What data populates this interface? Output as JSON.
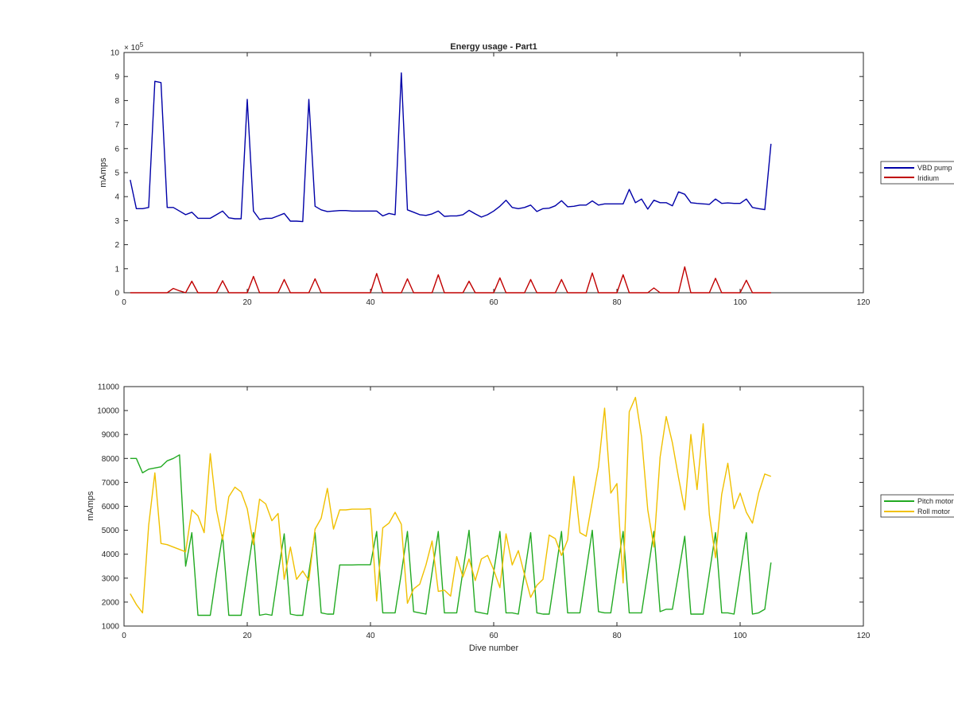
{
  "figure": {
    "title": "Energy usage - Part1"
  },
  "colors": {
    "vbd": "#0000a8",
    "iridium": "#c00000",
    "pitch": "#22aa22",
    "roll": "#f0c000",
    "axes": "#262626"
  },
  "chart_data": [
    {
      "type": "line",
      "title": "Energy usage - Part1",
      "xlabel": "",
      "ylabel": "mAmps",
      "xlim": [
        0,
        120
      ],
      "ylim": [
        0,
        1000000
      ],
      "exponent_label": "× 10",
      "exponent_power": "5",
      "xticks": [
        0,
        20,
        40,
        60,
        80,
        100,
        120
      ],
      "xtick_labels": [
        "0",
        "20",
        "40",
        "60",
        "80",
        "100",
        "120"
      ],
      "yticks": [
        0,
        100000,
        200000,
        300000,
        400000,
        500000,
        600000,
        700000,
        800000,
        900000,
        1000000
      ],
      "ytick_labels": [
        "0",
        "1",
        "2",
        "3",
        "4",
        "5",
        "6",
        "7",
        "8",
        "9",
        "10"
      ],
      "grid": false,
      "legend_position": "right",
      "series": [
        {
          "name": "VBD pump",
          "color": "#0000a8",
          "x": [
            1,
            2,
            3,
            4,
            5,
            6,
            7,
            8,
            9,
            10,
            11,
            12,
            13,
            14,
            15,
            16,
            17,
            18,
            19,
            20,
            21,
            22,
            23,
            24,
            25,
            26,
            27,
            28,
            29,
            30,
            31,
            32,
            33,
            34,
            35,
            36,
            37,
            38,
            39,
            40,
            41,
            42,
            43,
            44,
            45,
            46,
            47,
            48,
            49,
            50,
            51,
            52,
            53,
            54,
            55,
            56,
            57,
            58,
            59,
            60,
            61,
            62,
            63,
            64,
            65,
            66,
            67,
            68,
            69,
            70,
            71,
            72,
            73,
            74,
            75,
            76,
            77,
            78,
            79,
            80,
            81,
            82,
            83,
            84,
            85,
            86,
            87,
            88,
            89,
            90,
            91,
            92,
            93,
            94,
            95,
            96,
            97,
            98,
            99,
            100,
            101,
            102,
            103,
            104,
            105
          ],
          "values": [
            470000,
            350000,
            350000,
            355000,
            880000,
            875000,
            355000,
            355000,
            340000,
            325000,
            335000,
            310000,
            310000,
            310000,
            325000,
            340000,
            312000,
            308000,
            308000,
            805000,
            340000,
            305000,
            310000,
            310000,
            320000,
            330000,
            298000,
            298000,
            296000,
            805000,
            360000,
            345000,
            338000,
            340000,
            342000,
            342000,
            340000,
            340000,
            340000,
            340000,
            340000,
            320000,
            330000,
            325000,
            915000,
            345000,
            335000,
            325000,
            322000,
            328000,
            340000,
            318000,
            320000,
            320000,
            325000,
            343000,
            328000,
            315000,
            325000,
            340000,
            360000,
            385000,
            355000,
            350000,
            355000,
            365000,
            338000,
            350000,
            352000,
            362000,
            383000,
            358000,
            360000,
            365000,
            365000,
            382000,
            365000,
            370000,
            370000,
            370000,
            370000,
            430000,
            375000,
            390000,
            348000,
            385000,
            375000,
            375000,
            362000,
            420000,
            410000,
            375000,
            372000,
            370000,
            368000,
            390000,
            372000,
            374000,
            372000,
            372000,
            390000,
            355000,
            350000,
            346000,
            620000
          ]
        },
        {
          "name": "Iridium",
          "color": "#c00000",
          "x": [
            1,
            2,
            3,
            4,
            5,
            6,
            7,
            8,
            9,
            10,
            11,
            12,
            13,
            14,
            15,
            16,
            17,
            18,
            19,
            20,
            21,
            22,
            23,
            24,
            25,
            26,
            27,
            28,
            29,
            30,
            31,
            32,
            33,
            34,
            35,
            36,
            37,
            38,
            39,
            40,
            41,
            42,
            43,
            44,
            45,
            46,
            47,
            48,
            49,
            50,
            51,
            52,
            53,
            54,
            55,
            56,
            57,
            58,
            59,
            60,
            61,
            62,
            63,
            64,
            65,
            66,
            67,
            68,
            69,
            70,
            71,
            72,
            73,
            74,
            75,
            76,
            77,
            78,
            79,
            80,
            81,
            82,
            83,
            84,
            85,
            86,
            87,
            88,
            89,
            90,
            91,
            92,
            93,
            94,
            95,
            96,
            97,
            98,
            99,
            100,
            101,
            102,
            103,
            104,
            105
          ],
          "values": [
            0,
            0,
            0,
            0,
            0,
            0,
            0,
            18000,
            8000,
            0,
            48000,
            0,
            0,
            0,
            0,
            50000,
            0,
            0,
            0,
            0,
            68000,
            0,
            0,
            0,
            0,
            55000,
            0,
            0,
            0,
            0,
            58000,
            0,
            0,
            0,
            0,
            0,
            0,
            0,
            0,
            0,
            80000,
            0,
            0,
            0,
            0,
            58000,
            0,
            0,
            0,
            0,
            75000,
            0,
            0,
            0,
            0,
            48000,
            0,
            0,
            0,
            0,
            62000,
            0,
            0,
            0,
            0,
            55000,
            0,
            0,
            0,
            0,
            55000,
            0,
            0,
            0,
            0,
            82000,
            0,
            0,
            0,
            0,
            75000,
            0,
            0,
            0,
            0,
            20000,
            0,
            0,
            0,
            0,
            108000,
            0,
            0,
            0,
            0,
            60000,
            0,
            0,
            0,
            0,
            52000,
            0,
            0,
            0,
            0
          ]
        }
      ]
    },
    {
      "type": "line",
      "title": "",
      "xlabel": "Dive number",
      "ylabel": "mAmps",
      "xlim": [
        0,
        120
      ],
      "ylim": [
        1000,
        11000
      ],
      "xticks": [
        0,
        20,
        40,
        60,
        80,
        100,
        120
      ],
      "xtick_labels": [
        "0",
        "20",
        "40",
        "60",
        "80",
        "100",
        "120"
      ],
      "yticks": [
        1000,
        2000,
        3000,
        4000,
        5000,
        6000,
        7000,
        8000,
        9000,
        10000,
        11000
      ],
      "ytick_labels": [
        "1000",
        "2000",
        "3000",
        "4000",
        "5000",
        "6000",
        "7000",
        "8000",
        "9000",
        "10000",
        "11000"
      ],
      "grid": false,
      "legend_position": "right",
      "series": [
        {
          "name": "Pitch motor",
          "color": "#22aa22",
          "x": [
            1,
            2,
            3,
            4,
            5,
            6,
            7,
            8,
            9,
            10,
            11,
            12,
            13,
            14,
            15,
            16,
            17,
            18,
            19,
            20,
            21,
            22,
            23,
            24,
            25,
            26,
            27,
            28,
            29,
            30,
            31,
            32,
            33,
            34,
            35,
            36,
            37,
            38,
            39,
            40,
            41,
            42,
            43,
            44,
            45,
            46,
            47,
            48,
            49,
            50,
            51,
            52,
            53,
            54,
            55,
            56,
            57,
            58,
            59,
            60,
            61,
            62,
            63,
            64,
            65,
            66,
            67,
            68,
            69,
            70,
            71,
            72,
            73,
            74,
            75,
            76,
            77,
            78,
            79,
            80,
            81,
            82,
            83,
            84,
            85,
            86,
            87,
            88,
            89,
            90,
            91,
            92,
            93,
            94,
            95,
            96,
            97,
            98,
            99,
            100,
            101,
            102,
            103,
            104,
            105
          ],
          "values": [
            8000,
            8000,
            7400,
            7550,
            7600,
            7650,
            7900,
            8000,
            8150,
            3500,
            4900,
            1450,
            1450,
            1450,
            3200,
            4800,
            1450,
            1450,
            1450,
            3200,
            4900,
            1450,
            1500,
            1450,
            3200,
            4850,
            1500,
            1450,
            1450,
            3250,
            4900,
            1550,
            1500,
            1500,
            3550,
            3550,
            3550,
            3560,
            3560,
            3560,
            4950,
            1550,
            1550,
            1550,
            3200,
            4950,
            1600,
            1550,
            1500,
            3250,
            4950,
            1550,
            1550,
            1550,
            3300,
            5000,
            1600,
            1550,
            1500,
            3250,
            4950,
            1550,
            1550,
            1500,
            3200,
            4900,
            1550,
            1500,
            1500,
            3200,
            4950,
            1550,
            1550,
            1550,
            3300,
            5000,
            1600,
            1550,
            1550,
            3300,
            4950,
            1550,
            1550,
            1550,
            3250,
            4950,
            1600,
            1700,
            1700,
            3200,
            4750,
            1500,
            1500,
            1500,
            3200,
            4900,
            1550,
            1550,
            1500,
            3200,
            4900,
            1500,
            1550,
            1700,
            3650
          ]
        },
        {
          "name": "Roll motor",
          "color": "#f0c000",
          "x": [
            1,
            2,
            3,
            4,
            5,
            6,
            7,
            8,
            9,
            10,
            11,
            12,
            13,
            14,
            15,
            16,
            17,
            18,
            19,
            20,
            21,
            22,
            23,
            24,
            25,
            26,
            27,
            28,
            29,
            30,
            31,
            32,
            33,
            34,
            35,
            36,
            37,
            38,
            39,
            40,
            41,
            42,
            43,
            44,
            45,
            46,
            47,
            48,
            49,
            50,
            51,
            52,
            53,
            54,
            55,
            56,
            57,
            58,
            59,
            60,
            61,
            62,
            63,
            64,
            65,
            66,
            67,
            68,
            69,
            70,
            71,
            72,
            73,
            74,
            75,
            76,
            77,
            78,
            79,
            80,
            81,
            82,
            83,
            84,
            85,
            86,
            87,
            88,
            89,
            90,
            91,
            92,
            93,
            94,
            95,
            96,
            97,
            98,
            99,
            100,
            101,
            102,
            103,
            104,
            105
          ],
          "values": [
            2350,
            1900,
            1550,
            5200,
            7400,
            4450,
            4400,
            4300,
            4200,
            4100,
            5850,
            5600,
            4900,
            8200,
            5850,
            4600,
            6400,
            6800,
            6600,
            5900,
            4400,
            6300,
            6100,
            5400,
            5700,
            2950,
            4300,
            2950,
            3300,
            2900,
            5050,
            5500,
            6750,
            5050,
            5850,
            5850,
            5880,
            5880,
            5880,
            5900,
            2050,
            5100,
            5300,
            5750,
            5250,
            1950,
            2550,
            2750,
            3550,
            4550,
            2450,
            2500,
            2250,
            3900,
            3050,
            3800,
            2900,
            3800,
            3950,
            3350,
            2600,
            4850,
            3550,
            4150,
            3150,
            2200,
            2700,
            2950,
            4800,
            4650,
            3950,
            4600,
            7250,
            4900,
            4750,
            6200,
            7650,
            10100,
            6550,
            6950,
            2800,
            9950,
            10550,
            8900,
            5850,
            4300,
            8050,
            9750,
            8650,
            7200,
            5850,
            9000,
            6700,
            9450,
            5650,
            3850,
            6500,
            7800,
            5900,
            6550,
            5750,
            5300,
            6550,
            7350,
            7250
          ]
        }
      ]
    }
  ]
}
